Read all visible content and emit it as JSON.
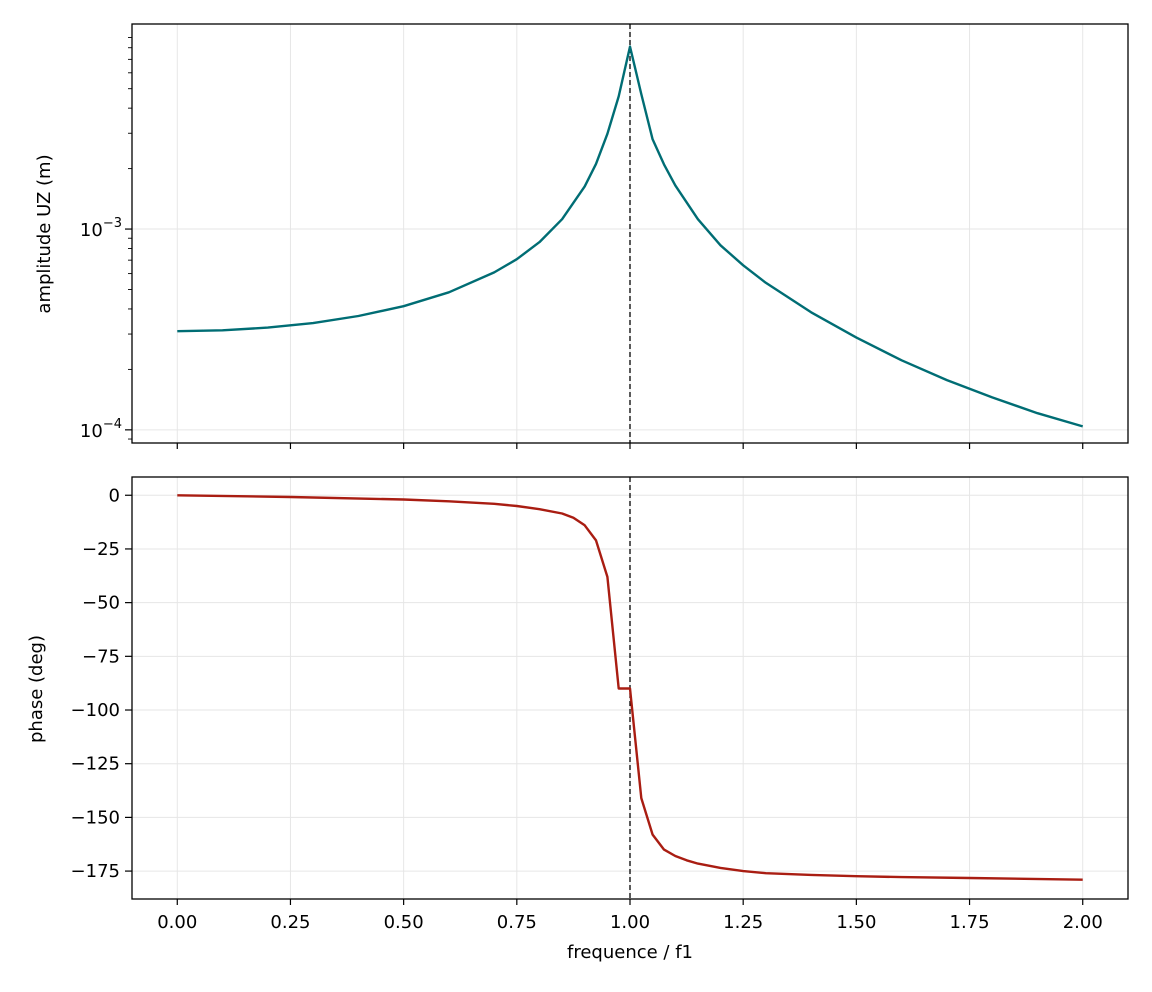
{
  "chart_data": [
    {
      "type": "line",
      "scale_y": "log",
      "xlabel": "",
      "ylabel": "amplitude UZ (m)",
      "xlim": [
        -0.1,
        2.1
      ],
      "ylim": [
        8.6e-05,
        0.0105
      ],
      "grid": true,
      "x_ticks": [
        0.0,
        0.25,
        0.5,
        0.75,
        1.0,
        1.25,
        1.5,
        1.75,
        2.0
      ],
      "y_tick_labels": [
        {
          "value": 0.001,
          "base": "10",
          "exp": "−3"
        },
        {
          "value": 0.0001,
          "base": "10",
          "exp": "−4"
        }
      ],
      "vline_x": 1.0,
      "series": [
        {
          "color": "#006d74",
          "x": [
            0.0,
            0.1,
            0.2,
            0.3,
            0.4,
            0.5,
            0.6,
            0.7,
            0.75,
            0.8,
            0.85,
            0.9,
            0.925,
            0.95,
            0.975,
            1.0,
            1.025,
            1.05,
            1.075,
            1.1,
            1.15,
            1.2,
            1.25,
            1.3,
            1.4,
            1.5,
            1.6,
            1.7,
            1.8,
            1.9,
            2.0
          ],
          "y": [
            0.00031,
            0.000313,
            0.000323,
            0.00034,
            0.000369,
            0.000413,
            0.000484,
            0.000608,
            0.000708,
            0.000861,
            0.00112,
            0.00163,
            0.00211,
            0.00298,
            0.00458,
            0.0081,
            0.0047,
            0.0028,
            0.0021,
            0.00165,
            0.00112,
            0.00083,
            0.00066,
            0.00054,
            0.000385,
            0.000288,
            0.000222,
            0.000177,
            0.000145,
            0.000121,
            0.000104
          ]
        }
      ]
    },
    {
      "type": "line",
      "xlabel": "frequence / f1",
      "ylabel": "phase (deg)",
      "xlim": [
        -0.1,
        2.1
      ],
      "ylim": [
        -188,
        8.5
      ],
      "grid": true,
      "x_ticks": [
        0.0,
        0.25,
        0.5,
        0.75,
        1.0,
        1.25,
        1.5,
        1.75,
        2.0
      ],
      "x_tick_labels": [
        "0.00",
        "0.25",
        "0.50",
        "0.75",
        "1.00",
        "1.25",
        "1.50",
        "1.75",
        "2.00"
      ],
      "y_ticks": [
        0,
        -25,
        -50,
        -75,
        -100,
        -125,
        -150,
        -175
      ],
      "y_tick_labels": [
        "0",
        "−25",
        "−50",
        "−75",
        "−100",
        "−125",
        "−150",
        "−175"
      ],
      "vline_x": 1.0,
      "series": [
        {
          "color": "#a91d12",
          "x": [
            0.0,
            0.25,
            0.5,
            0.6,
            0.7,
            0.75,
            0.8,
            0.85,
            0.875,
            0.9,
            0.925,
            0.95,
            0.975,
            1.0,
            1.025,
            1.05,
            1.075,
            1.1,
            1.125,
            1.15,
            1.2,
            1.25,
            1.3,
            1.4,
            1.5,
            1.6,
            1.75,
            2.0
          ],
          "y": [
            0,
            -0.8,
            -2,
            -2.8,
            -4,
            -5,
            -6.5,
            -8.5,
            -10.5,
            -14,
            -21,
            -38,
            -90,
            -90,
            -141,
            -158,
            -165,
            -168,
            -170,
            -171.5,
            -173.5,
            -175,
            -176,
            -176.8,
            -177.4,
            -177.8,
            -178.2,
            -179
          ]
        }
      ]
    }
  ]
}
